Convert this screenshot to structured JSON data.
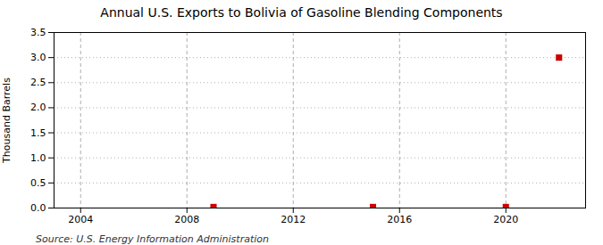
{
  "chart_data": {
    "type": "scatter",
    "title": "Annual U.S. Exports to Bolivia of Gasoline Blending Components",
    "ylabel": "Thousand Barrels",
    "source": "Source: U.S. Energy Information Administration",
    "x": [
      2009,
      2015,
      2020,
      2022
    ],
    "values": [
      0.02,
      0.02,
      0.02,
      3.0
    ],
    "color": "#cc0000",
    "marker": "square",
    "xlim": [
      2003,
      2023
    ],
    "xticks": [
      2004,
      2008,
      2012,
      2016,
      2020
    ],
    "ylim": [
      0,
      3.5
    ],
    "yticks": [
      {
        "value": 0,
        "label": "0.0"
      },
      0.5,
      {
        "value": 1,
        "label": "1.0"
      },
      1.5,
      {
        "value": 2,
        "label": "2.0"
      },
      2.5,
      {
        "value": 3,
        "label": "3.0"
      },
      3.5
    ],
    "grid": true
  }
}
